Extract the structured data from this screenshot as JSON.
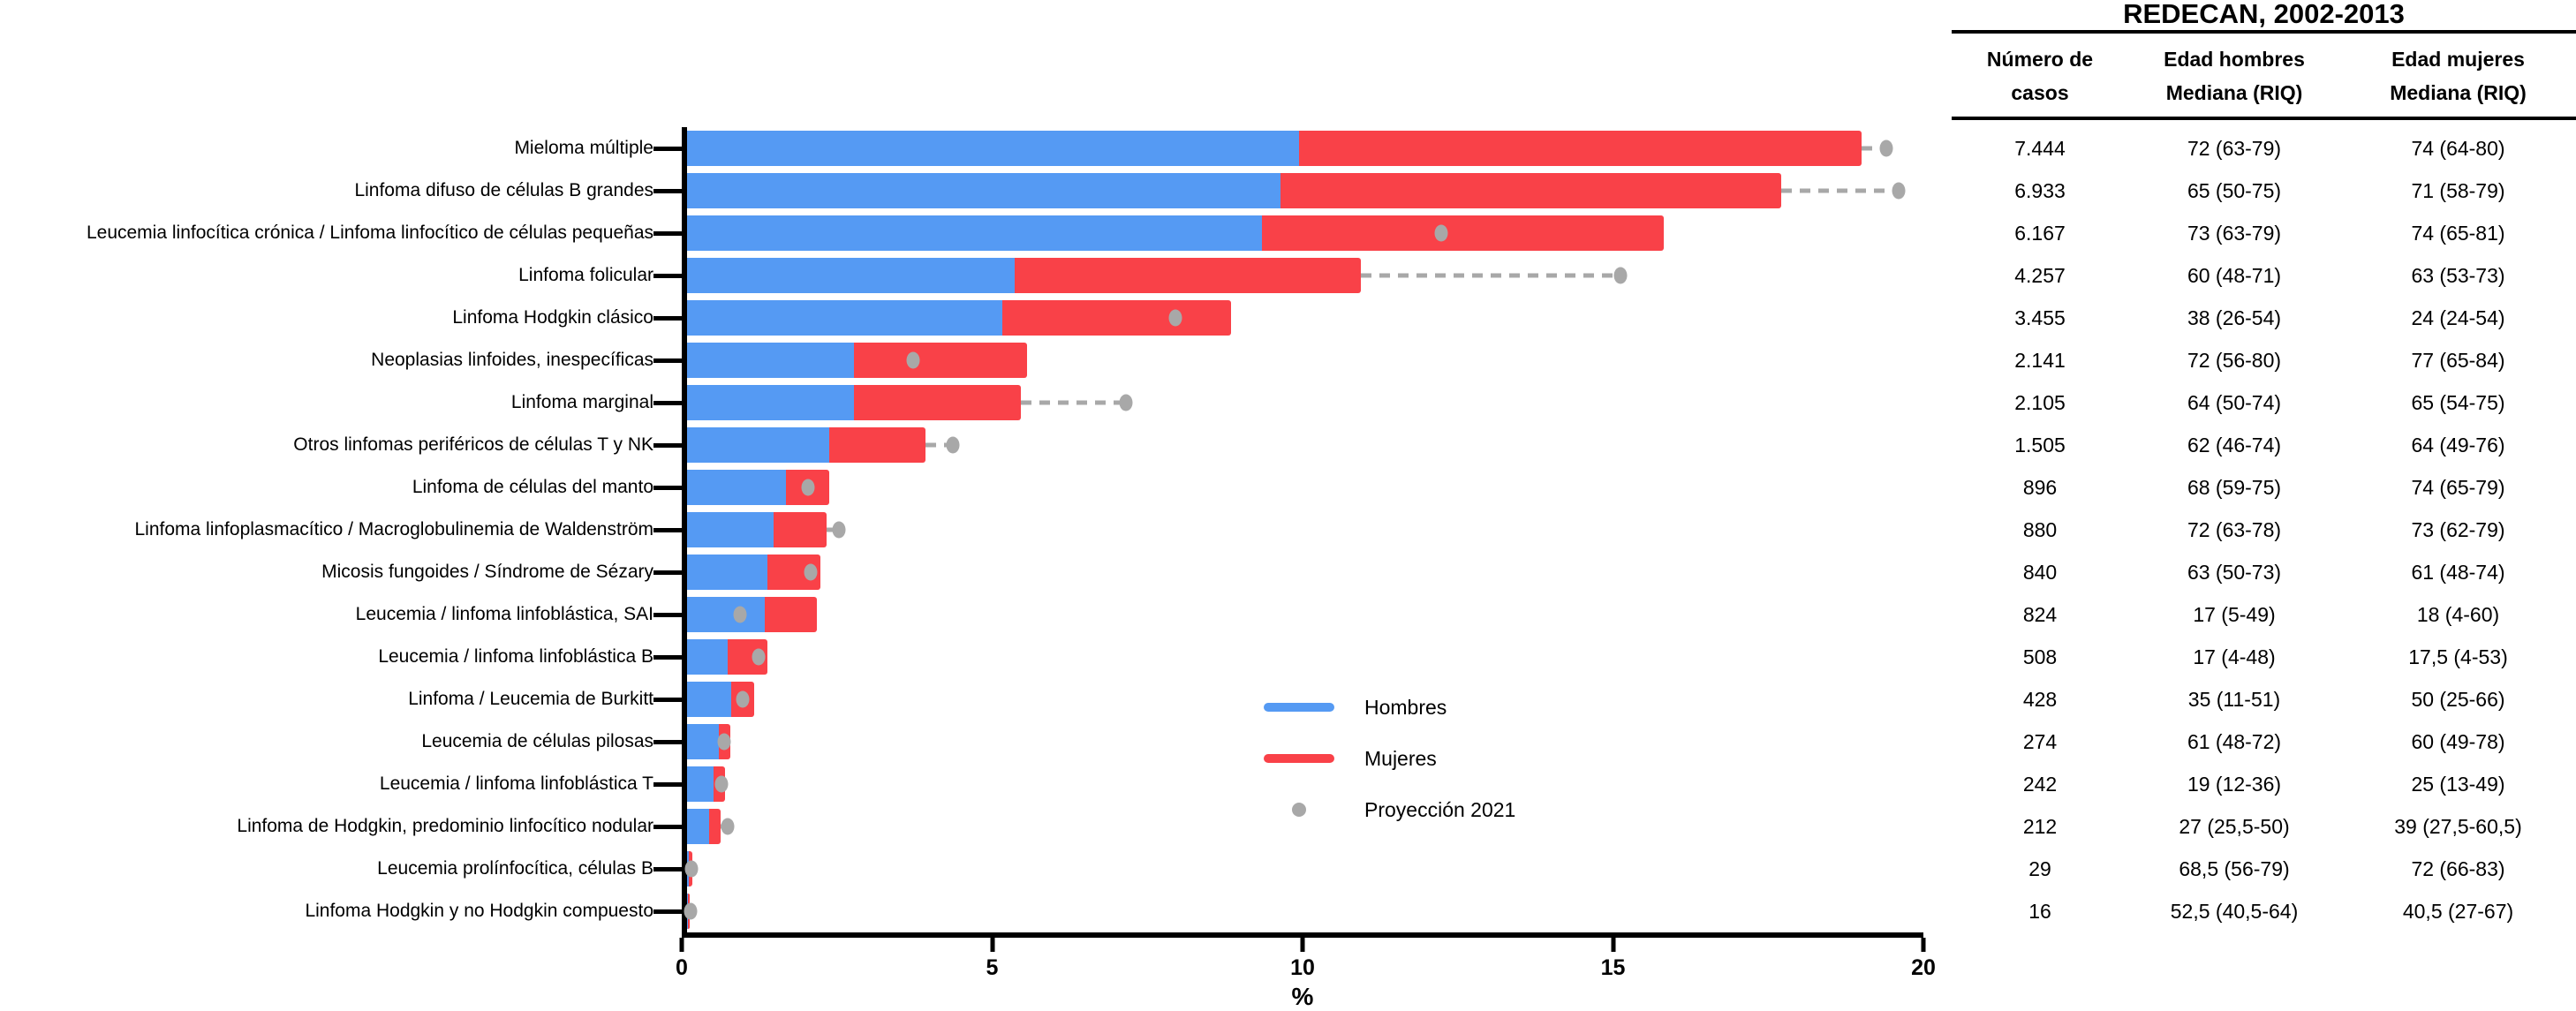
{
  "table": {
    "title": "REDECAN, 2002-2013",
    "headers": [
      {
        "line1": "Número de",
        "line2": "casos"
      },
      {
        "line1": "Edad hombres",
        "line2": "Mediana (RIQ)"
      },
      {
        "line1": "Edad mujeres",
        "line2": "Mediana (RIQ)"
      }
    ],
    "rows": [
      [
        "7.444",
        "72 (63-79)",
        "74 (64-80)"
      ],
      [
        "6.933",
        "65 (50-75)",
        "71 (58-79)"
      ],
      [
        "6.167",
        "73 (63-79)",
        "74 (65-81)"
      ],
      [
        "4.257",
        "60 (48-71)",
        "63 (53-73)"
      ],
      [
        "3.455",
        "38 (26-54)",
        "24 (24-54)"
      ],
      [
        "2.141",
        "72 (56-80)",
        "77 (65-84)"
      ],
      [
        "2.105",
        "64 (50-74)",
        "65 (54-75)"
      ],
      [
        "1.505",
        "62 (46-74)",
        "64 (49-76)"
      ],
      [
        "896",
        "68 (59-75)",
        "74 (65-79)"
      ],
      [
        "880",
        "72 (63-78)",
        "73 (62-79)"
      ],
      [
        "840",
        "63 (50-73)",
        "61 (48-74)"
      ],
      [
        "824",
        "17 (5-49)",
        "18 (4-60)"
      ],
      [
        "508",
        "17 (4-48)",
        "17,5 (4-53)"
      ],
      [
        "428",
        "35 (11-51)",
        "50 (25-66)"
      ],
      [
        "274",
        "61 (48-72)",
        "60 (49-78)"
      ],
      [
        "242",
        "19 (12-36)",
        "25 (13-49)"
      ],
      [
        "212",
        "27 (25,5-50)",
        "39 (27,5-60,5)"
      ],
      [
        "29",
        "68,5 (56-79)",
        "72 (66-83)"
      ],
      [
        "16",
        "52,5 (40,5-64)",
        "40,5 (27-67)"
      ]
    ]
  },
  "chart_data": {
    "type": "bar",
    "orientation": "horizontal",
    "stacked": true,
    "categories": [
      "Mieloma múltiple",
      "Linfoma difuso de células B grandes",
      "Leucemia linfocítica crónica / Linfoma linfocítico de células pequeñas",
      "Linfoma folicular",
      "Linfoma Hodgkin clásico",
      "Neoplasias linfoides, inespecíficas",
      "Linfoma marginal",
      "Otros linfomas periféricos de células T y NK",
      "Linfoma de células del manto",
      "Linfoma linfoplasmacítico / Macroglobulinemia de Waldenström",
      "Micosis fungoides / Síndrome de Sézary",
      "Leucemia / linfoma linfoblástica, SAI",
      "Leucemia / linfoma linfoblástica B",
      "Linfoma / Leucemia de Burkitt",
      "Leucemia de células pilosas",
      "Leucemia / linfoma linfoblástica T",
      "Linfoma de Hodgkin, predominio linfocítico nodular",
      "Leucemia prolínfocítica, células B",
      "Linfoma Hodgkin y no Hodgkin compuesto"
    ],
    "series": [
      {
        "name": "Hombres",
        "type": "bar",
        "values": [
          9.9,
          9.6,
          9.3,
          5.3,
          5.1,
          2.7,
          2.7,
          2.3,
          1.6,
          1.4,
          1.3,
          1.25,
          0.65,
          0.72,
          0.52,
          0.43,
          0.36,
          0.03,
          0.02
        ]
      },
      {
        "name": "Mujeres",
        "type": "bar",
        "values": [
          9.1,
          8.1,
          6.5,
          5.6,
          3.7,
          2.8,
          2.7,
          1.55,
          0.7,
          0.85,
          0.85,
          0.85,
          0.65,
          0.37,
          0.18,
          0.19,
          0.18,
          0.05,
          0.03
        ]
      },
      {
        "name": "Proyección 2021",
        "type": "scatter",
        "values": [
          19.4,
          19.6,
          12.2,
          15.1,
          7.9,
          3.65,
          7.1,
          4.3,
          1.95,
          2.45,
          2.0,
          0.85,
          1.15,
          0.9,
          0.6,
          0.56,
          0.65,
          0.07,
          0.05
        ]
      }
    ],
    "xlabel": "%",
    "xlim": [
      0,
      20
    ],
    "xticks": [
      0,
      5,
      10,
      15,
      20
    ],
    "grid": false,
    "legend_position": "inside-lower-right",
    "legend": [
      {
        "label": "Hombres",
        "swatch": "line",
        "color": "#559AF3"
      },
      {
        "label": "Mujeres",
        "swatch": "line",
        "color": "#F94148"
      },
      {
        "label": "Proyección 2021",
        "swatch": "dot",
        "color": "#A8A8A8"
      }
    ],
    "colors": {
      "hombres": "#559AF3",
      "mujeres": "#F94148",
      "proyeccion": "#A8A8A8",
      "axis": "#000000"
    }
  }
}
